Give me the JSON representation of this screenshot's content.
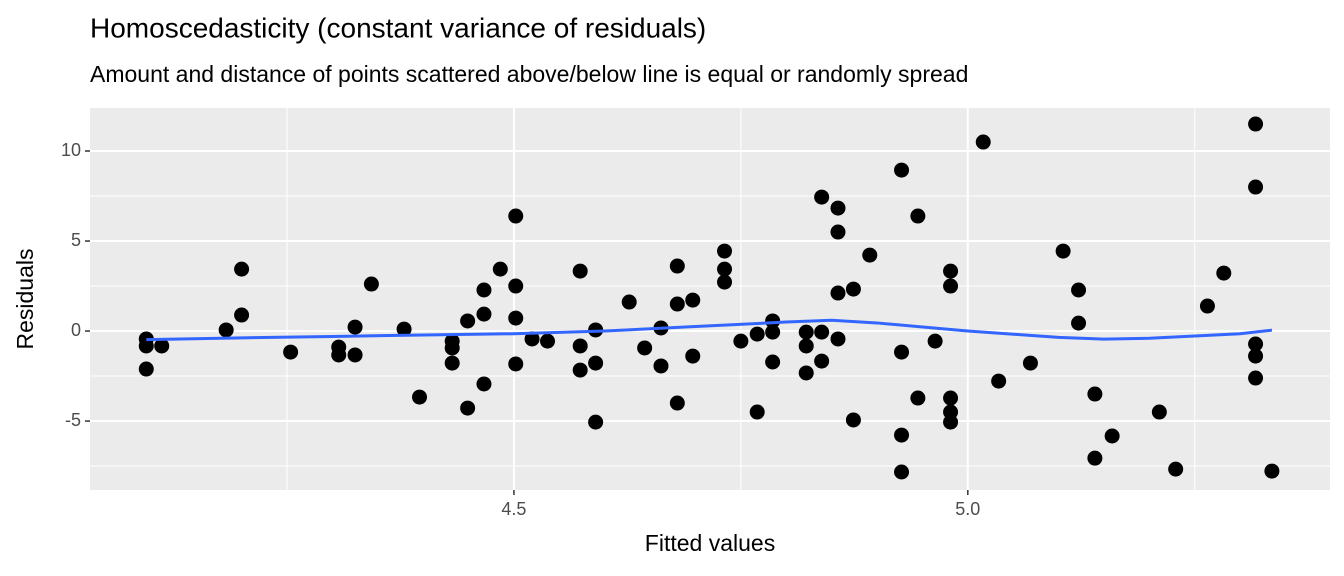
{
  "chart_data": {
    "type": "scatter",
    "title": "Homoscedasticity (constant variance of residuals)",
    "subtitle": "Amount and distance of points scattered above/below line is equal or randomly spread",
    "x_label": "Fitted values",
    "y_label": "Residuals",
    "xlim": [
      4.033,
      5.399
    ],
    "ylim": [
      -8.83,
      12.39
    ],
    "xticks": [
      4.5,
      {
        "value": 5,
        "label": "5.0"
      }
    ],
    "yticks": [
      -5,
      0,
      5,
      10
    ],
    "x_minor_ticks": [
      4.25,
      4.75,
      5.25
    ],
    "y_minor_ticks": [
      -7.5,
      -2.5,
      2.5,
      7.5
    ],
    "grid": true,
    "points": {
      "color": "#000000",
      "x": [
        4.095,
        4.095,
        4.095,
        4.112,
        4.183,
        4.2,
        4.2,
        4.254,
        4.307,
        4.307,
        4.325,
        4.325,
        4.343,
        4.379,
        4.396,
        4.432,
        4.432,
        4.432,
        4.449,
        4.449,
        4.467,
        4.467,
        4.467,
        4.485,
        4.502,
        4.502,
        4.502,
        4.502,
        4.52,
        4.537,
        4.573,
        4.573,
        4.573,
        4.59,
        4.59,
        4.59,
        4.627,
        4.644,
        4.662,
        4.662,
        4.68,
        4.68,
        4.68,
        4.697,
        4.697,
        4.732,
        4.732,
        4.732,
        4.75,
        4.768,
        4.768,
        4.785,
        4.785,
        4.785,
        4.822,
        4.822,
        4.822,
        4.839,
        4.839,
        4.839,
        4.857,
        4.857,
        4.857,
        4.857,
        4.874,
        4.874,
        4.892,
        4.927,
        4.927,
        4.927,
        4.927,
        4.945,
        4.945,
        4.964,
        4.981,
        4.981,
        4.981,
        4.981,
        4.981,
        5.017,
        5.034,
        5.069,
        5.105,
        5.122,
        5.122,
        5.14,
        5.14,
        5.159,
        5.211,
        5.229,
        5.264,
        5.282,
        5.317,
        5.317,
        5.317,
        5.317,
        5.317,
        5.335
      ],
      "y": [
        -0.44,
        -0.83,
        -2.11,
        -0.83,
        0.06,
        0.89,
        3.44,
        -1.17,
        -0.89,
        -1.33,
        0.22,
        -1.33,
        2.61,
        0.11,
        -3.67,
        -0.56,
        -0.94,
        -1.78,
        0.56,
        -4.28,
        0.94,
        2.28,
        -2.94,
        3.44,
        6.39,
        2.5,
        0.72,
        -1.83,
        -0.44,
        -0.56,
        3.33,
        -0.83,
        -2.17,
        0.06,
        -1.78,
        -5.06,
        1.61,
        -0.94,
        0.17,
        -1.94,
        3.61,
        1.5,
        -4.0,
        1.72,
        -1.39,
        4.44,
        3.44,
        2.72,
        -0.56,
        -0.17,
        -4.5,
        0.56,
        -0.06,
        -1.72,
        -0.06,
        -0.83,
        -2.33,
        7.44,
        -0.06,
        -1.67,
        6.83,
        5.5,
        2.11,
        -0.44,
        2.33,
        -4.94,
        4.22,
        8.94,
        -1.17,
        -5.78,
        -7.83,
        6.39,
        -3.72,
        -0.56,
        3.33,
        2.5,
        -3.72,
        -4.5,
        -5.06,
        10.5,
        -2.78,
        -1.78,
        4.44,
        2.28,
        0.44,
        -3.5,
        -7.06,
        -5.83,
        -4.5,
        -7.67,
        1.39,
        3.22,
        11.5,
        8.0,
        -0.72,
        -1.39,
        -2.61,
        -7.78
      ]
    },
    "smooth": {
      "color": "#3366ff",
      "x": [
        4.095,
        4.2,
        4.3,
        4.4,
        4.5,
        4.6,
        4.7,
        4.8,
        4.85,
        4.9,
        5.0,
        5.1,
        5.15,
        5.2,
        5.3,
        5.335
      ],
      "y": [
        -0.48,
        -0.38,
        -0.3,
        -0.22,
        -0.15,
        0.0,
        0.25,
        0.5,
        0.6,
        0.45,
        0.0,
        -0.35,
        -0.45,
        -0.4,
        -0.15,
        0.05
      ]
    }
  }
}
